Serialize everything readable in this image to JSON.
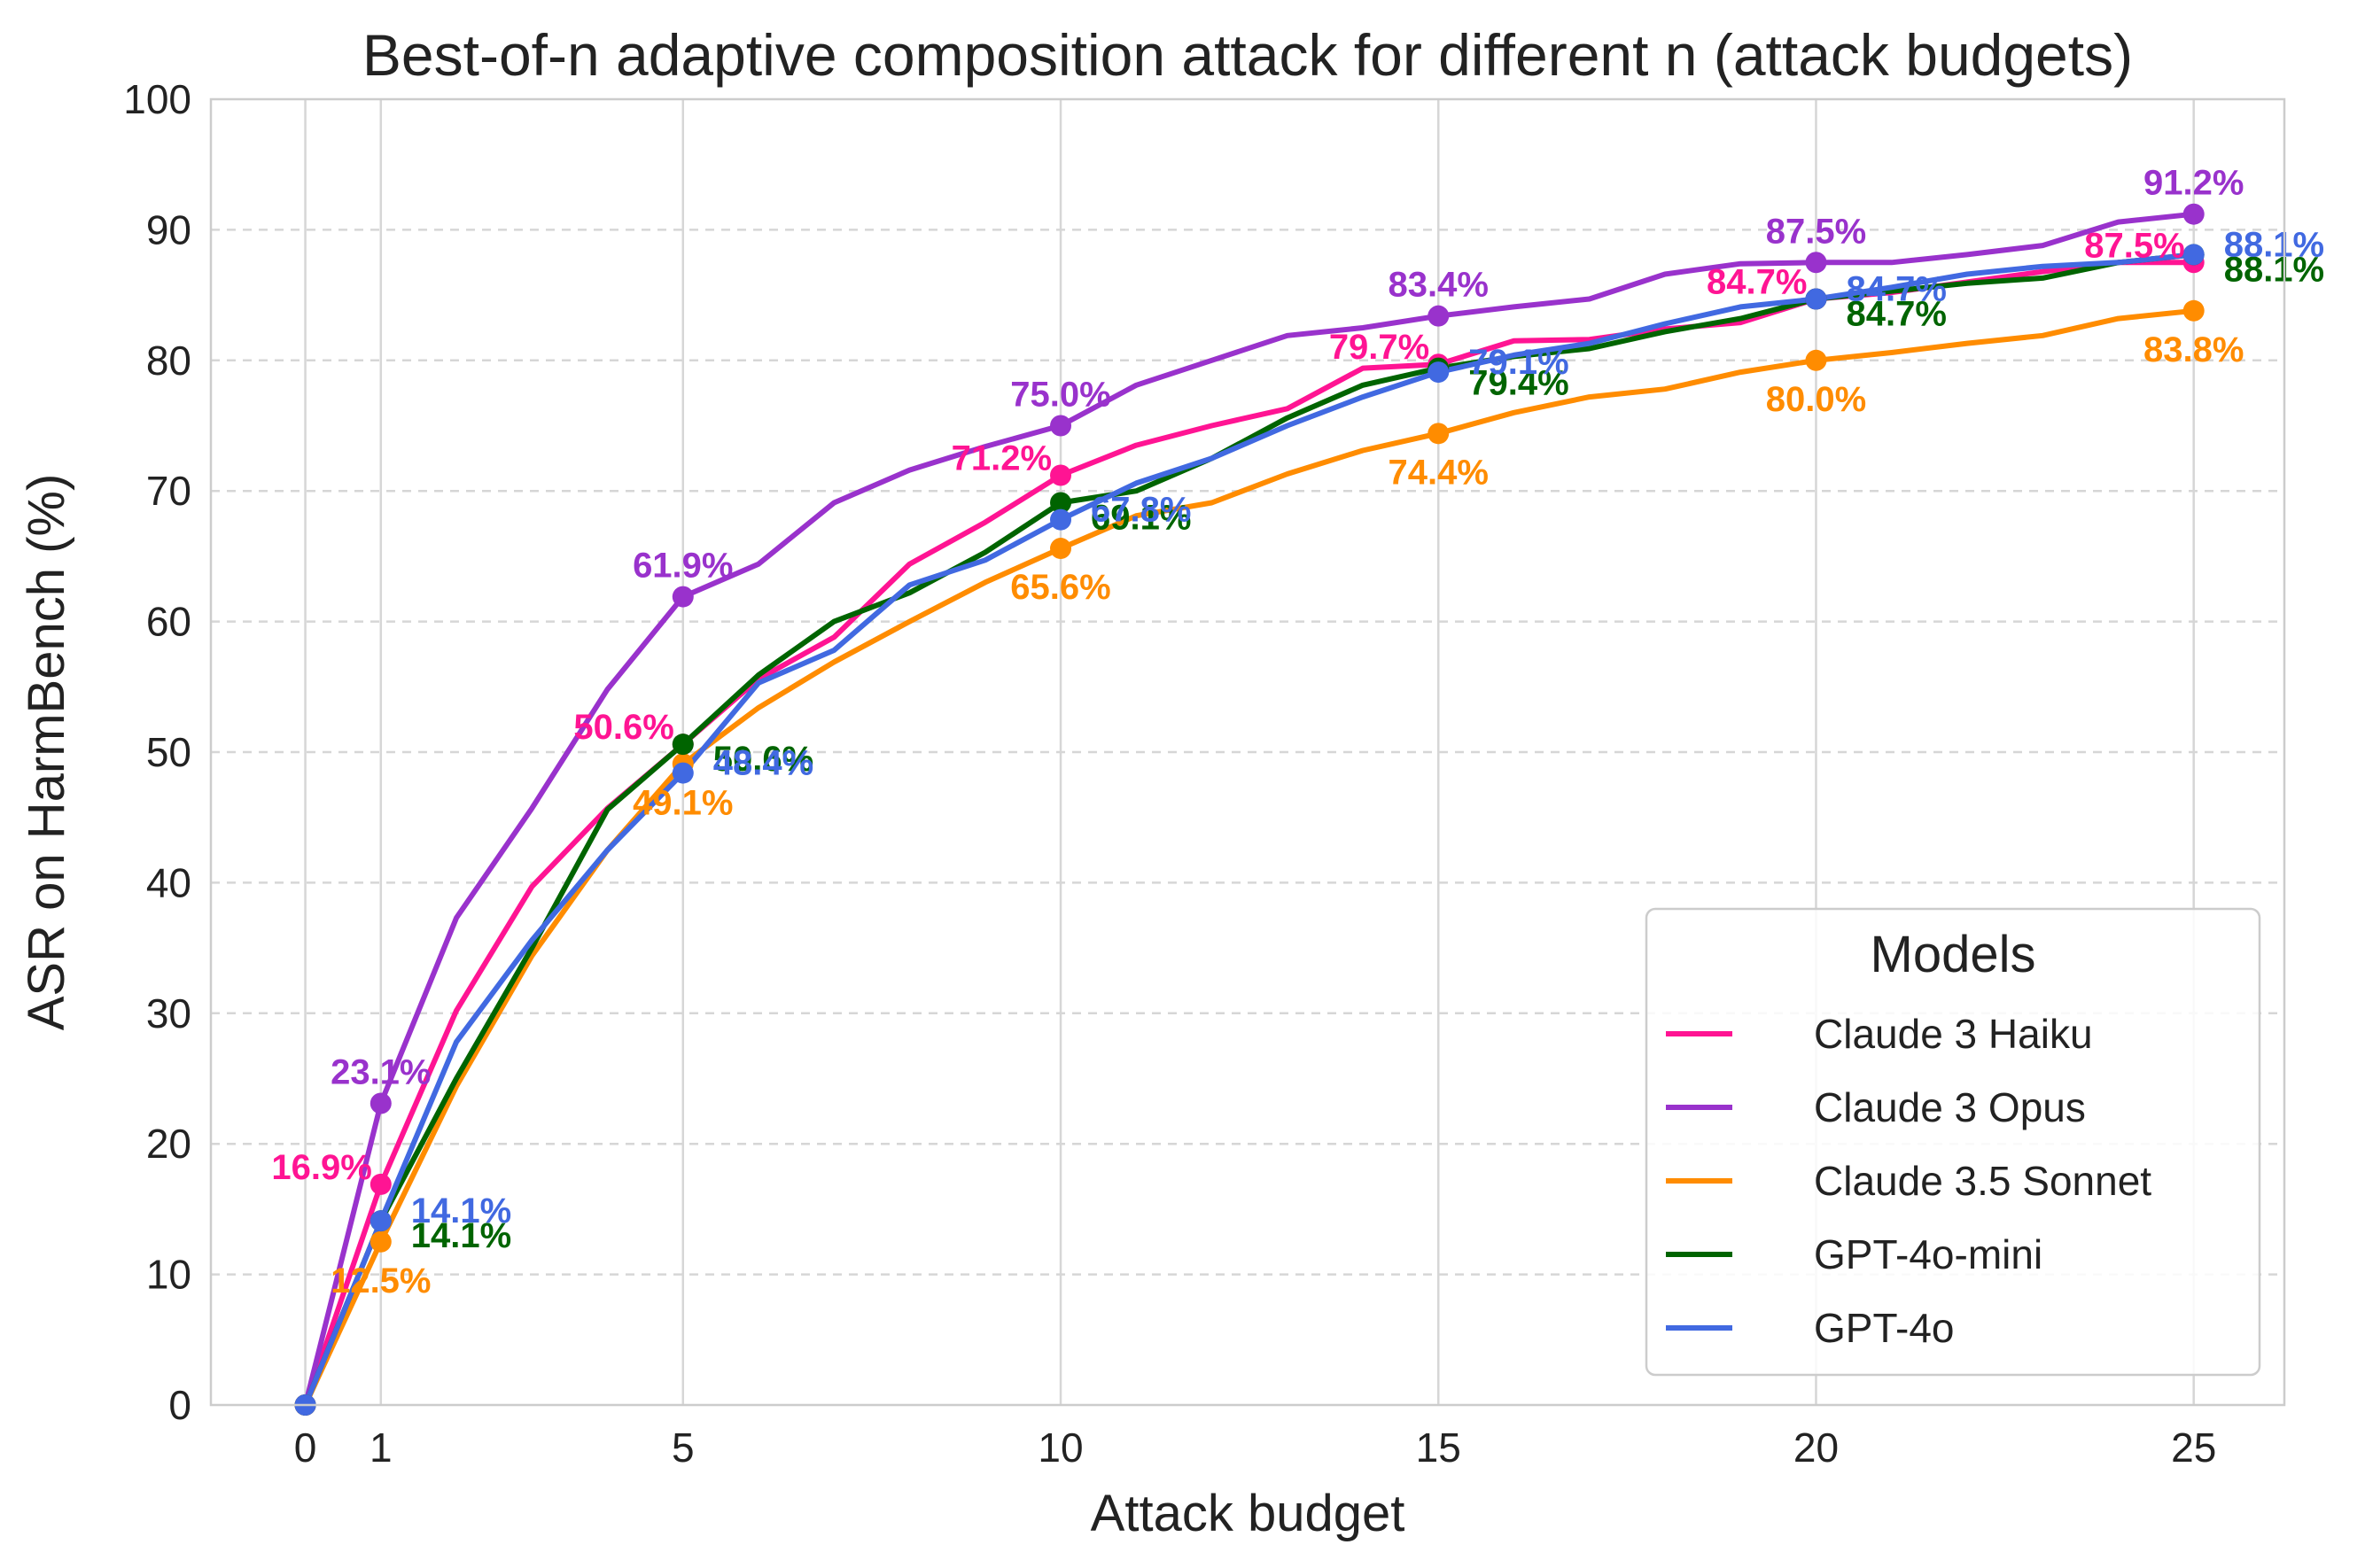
{
  "chart_data": {
    "type": "line",
    "title": "Best-of-n adaptive composition attack for different n (attack budgets)",
    "xlabel": "Attack budget",
    "ylabel": "ASR on HarmBench (%)",
    "xlim": [
      -1.25,
      26.2
    ],
    "ylim": [
      0,
      100
    ],
    "xticks": [
      0,
      1,
      5,
      10,
      15,
      20,
      25
    ],
    "yticks": [
      0,
      10,
      20,
      30,
      40,
      50,
      60,
      70,
      80,
      90,
      100
    ],
    "grid": true,
    "legend": {
      "title": "Models",
      "position": "lower-right"
    },
    "x": [
      0,
      1,
      2,
      3,
      4,
      5,
      6,
      7,
      8,
      9,
      10,
      11,
      12,
      13,
      14,
      15,
      16,
      17,
      18,
      19,
      20,
      21,
      22,
      23,
      24,
      25
    ],
    "series": [
      {
        "name": "Claude 3 Haiku",
        "color": "#FF1493",
        "values": [
          0,
          16.9,
          30.2,
          39.7,
          45.7,
          50.6,
          55.6,
          58.8,
          64.4,
          67.6,
          71.2,
          73.5,
          75.0,
          76.3,
          79.4,
          79.7,
          81.5,
          81.6,
          82.4,
          82.9,
          84.7,
          85.2,
          86.0,
          86.8,
          87.5,
          87.5
        ],
        "marker_labels": [
          {
            "x": 1,
            "text": "16.9%",
            "pos": "left-top"
          },
          {
            "x": 5,
            "text": "50.6%",
            "pos": "left-top"
          },
          {
            "x": 10,
            "text": "71.2%",
            "pos": "left-top"
          },
          {
            "x": 15,
            "text": "79.7%",
            "pos": "left-top"
          },
          {
            "x": 20,
            "text": "84.7%",
            "pos": "left-top"
          },
          {
            "x": 25,
            "text": "87.5%",
            "pos": "left-top"
          }
        ]
      },
      {
        "name": "Claude 3 Opus",
        "color": "#9932CC",
        "values": [
          0,
          23.1,
          37.3,
          45.7,
          54.8,
          61.9,
          64.4,
          69.1,
          71.6,
          73.4,
          75.0,
          78.1,
          80.0,
          81.9,
          82.5,
          83.4,
          84.1,
          84.7,
          86.6,
          87.4,
          87.5,
          87.5,
          88.1,
          88.8,
          90.6,
          91.2
        ],
        "marker_labels": [
          {
            "x": 1,
            "text": "23.1%",
            "pos": "top"
          },
          {
            "x": 5,
            "text": "61.9%",
            "pos": "top"
          },
          {
            "x": 10,
            "text": "75.0%",
            "pos": "top"
          },
          {
            "x": 15,
            "text": "83.4%",
            "pos": "top"
          },
          {
            "x": 20,
            "text": "87.5%",
            "pos": "top"
          },
          {
            "x": 25,
            "text": "91.2%",
            "pos": "top"
          }
        ]
      },
      {
        "name": "Claude 3.5 Sonnet",
        "color": "#FF8C00",
        "values": [
          0,
          12.5,
          24.4,
          34.4,
          42.5,
          49.1,
          53.4,
          56.9,
          60.0,
          63.0,
          65.6,
          68.1,
          69.1,
          71.3,
          73.1,
          74.4,
          76.0,
          77.2,
          77.8,
          79.1,
          80.0,
          80.6,
          81.3,
          81.9,
          83.2,
          83.8
        ],
        "marker_labels": [
          {
            "x": 1,
            "text": "12.5%",
            "pos": "bottom"
          },
          {
            "x": 5,
            "text": "49.1%",
            "pos": "bottom"
          },
          {
            "x": 10,
            "text": "65.6%",
            "pos": "bottom"
          },
          {
            "x": 15,
            "text": "74.4%",
            "pos": "bottom"
          },
          {
            "x": 20,
            "text": "80.0%",
            "pos": "bottom"
          },
          {
            "x": 25,
            "text": "83.8%",
            "pos": "bottom"
          }
        ]
      },
      {
        "name": "GPT-4o-mini",
        "color": "#006400",
        "values": [
          0,
          14.1,
          25.0,
          35.0,
          45.6,
          50.6,
          55.9,
          60.0,
          62.2,
          65.3,
          69.1,
          70.0,
          72.5,
          75.6,
          78.1,
          79.4,
          80.3,
          80.9,
          82.2,
          83.2,
          84.7,
          85.3,
          85.9,
          86.3,
          87.5,
          88.1
        ],
        "marker_labels": [
          {
            "x": 1,
            "text": "14.1%",
            "pos": "right-bottom"
          },
          {
            "x": 5,
            "text": "50.6%",
            "pos": "right-bottom"
          },
          {
            "x": 10,
            "text": "69.1%",
            "pos": "right-bottom"
          },
          {
            "x": 15,
            "text": "79.4%",
            "pos": "right-bottom"
          },
          {
            "x": 20,
            "text": "84.7%",
            "pos": "right-bottom"
          },
          {
            "x": 25,
            "text": "88.1%",
            "pos": "right-bottom"
          }
        ]
      },
      {
        "name": "GPT-4o",
        "color": "#4169E1",
        "values": [
          0,
          14.1,
          27.8,
          35.6,
          42.5,
          48.4,
          55.3,
          57.8,
          62.8,
          64.7,
          67.8,
          70.6,
          72.5,
          75.0,
          77.2,
          79.1,
          80.4,
          81.3,
          82.8,
          84.1,
          84.7,
          85.6,
          86.6,
          87.2,
          87.5,
          88.1
        ],
        "marker_labels": [
          {
            "x": 1,
            "text": "14.1%",
            "pos": "right-top"
          },
          {
            "x": 5,
            "text": "48.4%",
            "pos": "right-top"
          },
          {
            "x": 10,
            "text": "67.8%",
            "pos": "right-top"
          },
          {
            "x": 15,
            "text": "79.1%",
            "pos": "right-top"
          },
          {
            "x": 20,
            "text": "84.7%",
            "pos": "right-top"
          },
          {
            "x": 25,
            "text": "88.1%",
            "pos": "right-top"
          }
        ]
      }
    ]
  }
}
